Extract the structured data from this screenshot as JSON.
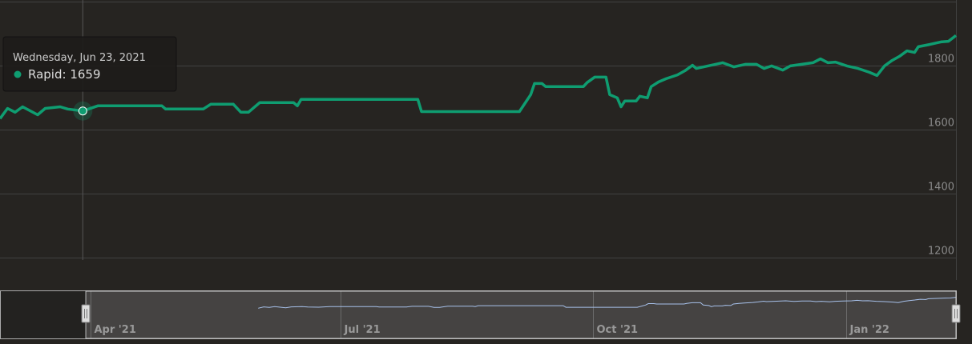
{
  "chart_data": {
    "type": "line",
    "x": [
      "2021-06-01",
      "2021-06-03",
      "2021-06-05",
      "2021-06-07",
      "2021-06-11",
      "2021-06-13",
      "2021-06-17",
      "2021-06-19",
      "2021-06-23",
      "2021-06-27",
      "2021-07-14",
      "2021-07-15",
      "2021-07-25",
      "2021-07-27",
      "2021-08-02",
      "2021-08-04",
      "2021-08-06",
      "2021-08-09",
      "2021-08-18",
      "2021-08-19",
      "2021-08-20",
      "2021-09-20",
      "2021-09-21",
      "2021-10-17",
      "2021-10-20",
      "2021-10-21",
      "2021-10-23",
      "2021-10-24",
      "2021-11-03",
      "2021-11-04",
      "2021-11-06",
      "2021-11-09",
      "2021-11-10",
      "2021-11-12",
      "2021-11-13",
      "2021-11-14",
      "2021-11-17",
      "2021-11-18",
      "2021-11-20",
      "2021-11-21",
      "2021-11-23",
      "2021-11-25",
      "2021-11-28",
      "2021-11-30",
      "2021-12-02",
      "2021-12-03",
      "2021-12-05",
      "2021-12-10",
      "2021-12-13",
      "2021-12-16",
      "2021-12-19",
      "2021-12-21",
      "2021-12-23",
      "2021-12-26",
      "2021-12-28",
      "2021-12-31",
      "2022-01-03",
      "2022-01-05",
      "2022-01-07",
      "2022-01-09",
      "2022-01-12",
      "2022-01-15",
      "2022-01-18",
      "2022-01-20",
      "2022-01-22",
      "2022-01-24",
      "2022-01-26",
      "2022-01-28",
      "2022-01-30",
      "2022-01-31",
      "2022-02-03",
      "2022-02-06",
      "2022-02-08",
      "2022-02-10"
    ],
    "series": [
      {
        "name": "Rapid",
        "color": "#0f9d71",
        "values": [
          1635,
          1667,
          1655,
          1672,
          1647,
          1667,
          1672,
          1665,
          1659,
          1675,
          1675,
          1665,
          1665,
          1680,
          1680,
          1655,
          1655,
          1685,
          1685,
          1675,
          1695,
          1695,
          1657,
          1657,
          1710,
          1745,
          1745,
          1735,
          1735,
          1748,
          1765,
          1765,
          1710,
          1700,
          1672,
          1690,
          1690,
          1705,
          1700,
          1735,
          1750,
          1760,
          1772,
          1785,
          1802,
          1792,
          1797,
          1810,
          1797,
          1805,
          1805,
          1792,
          1800,
          1787,
          1800,
          1805,
          1810,
          1822,
          1810,
          1812,
          1800,
          1792,
          1780,
          1770,
          1800,
          1817,
          1830,
          1847,
          1842,
          1860,
          1867,
          1875,
          1877,
          1895
        ]
      }
    ],
    "xlim": [
      "2021-06-01",
      "2022-02-10"
    ],
    "ylim": [
      1130,
      2000
    ],
    "yticks": [
      1200,
      1400,
      1600,
      1800
    ],
    "grid": true,
    "tooltip": {
      "date": "Wednesday, Jun 23, 2021",
      "text": "Rapid: 1659",
      "index": 8
    },
    "navigator": {
      "xlim": [
        "2021-02-27",
        "2022-02-10"
      ],
      "xticks": [
        {
          "value": "2021-04-01",
          "label": "Apr '21"
        },
        {
          "value": "2021-07-01",
          "label": "Jul '21"
        },
        {
          "value": "2021-10-01",
          "label": "Oct '21"
        },
        {
          "value": "2022-01-01",
          "label": "Jan '22"
        }
      ]
    }
  }
}
